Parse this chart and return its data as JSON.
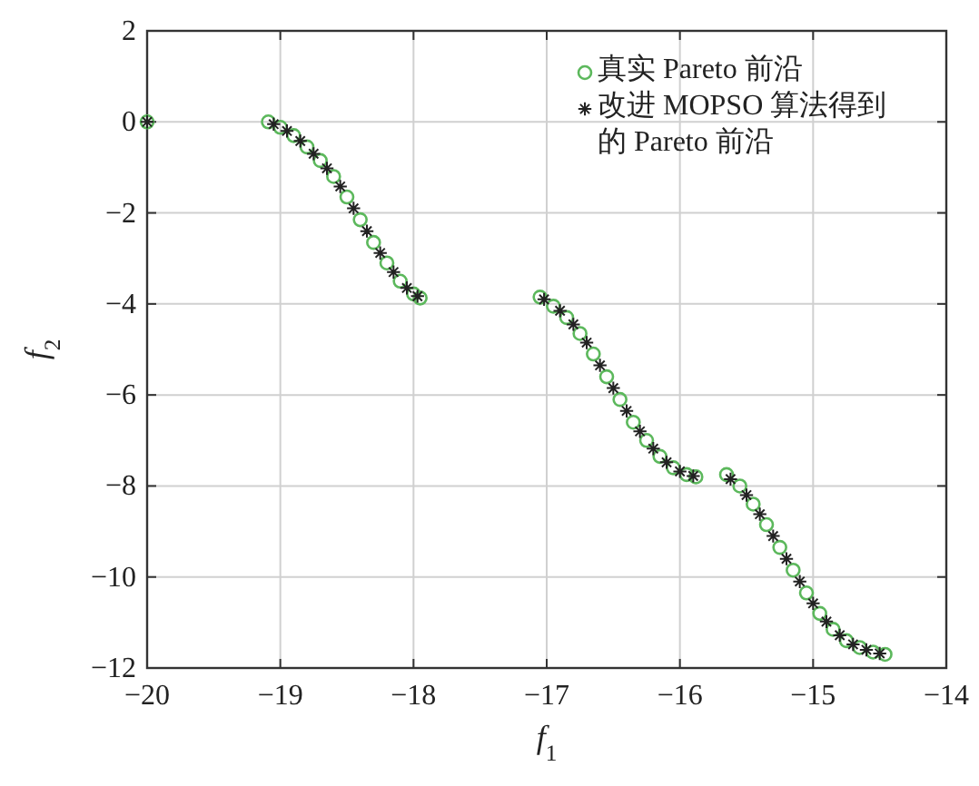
{
  "chart_data": {
    "type": "scatter",
    "xlabel": "f$_{1}$",
    "ylabel": "f$_{2}$",
    "xlim": [
      -20,
      -14
    ],
    "ylim": [
      -12,
      2
    ],
    "xticks": [
      {
        "value": -20,
        "label": "−20"
      },
      {
        "value": -19,
        "label": "−19"
      },
      {
        "value": -18,
        "label": "−18"
      },
      {
        "value": -17,
        "label": "−17"
      },
      {
        "value": -16,
        "label": "−16"
      },
      {
        "value": -15,
        "label": "−15"
      },
      {
        "value": -14,
        "label": "−14"
      }
    ],
    "yticks": [
      {
        "value": -12,
        "label": "−12"
      },
      {
        "value": -10,
        "label": "−10"
      },
      {
        "value": -8,
        "label": "−8"
      },
      {
        "value": -6,
        "label": "−6"
      },
      {
        "value": -4,
        "label": "−4"
      },
      {
        "value": -2,
        "label": "−2"
      },
      {
        "value": 0,
        "label": "0"
      },
      {
        "value": 2,
        "label": "2"
      }
    ],
    "grid": true,
    "legend": "top right",
    "series": [
      {
        "name": "真实 Pareto 前沿",
        "color": "#5cb85c",
        "marker": "circle",
        "x": [
          -20,
          -19.09,
          -19.0,
          -18.9,
          -18.8,
          -18.7,
          -18.6,
          -18.5,
          -18.4,
          -18.3,
          -18.2,
          -18.1,
          -18.0,
          -17.95,
          -17.05,
          -16.95,
          -16.85,
          -16.75,
          -16.65,
          -16.55,
          -16.45,
          -16.35,
          -16.25,
          -16.15,
          -16.05,
          -15.95,
          -15.88,
          -15.65,
          -15.55,
          -15.45,
          -15.35,
          -15.25,
          -15.15,
          -15.05,
          -14.95,
          -14.85,
          -14.75,
          -14.65,
          -14.55,
          -14.46
        ],
        "values": [
          0,
          0,
          -0.12,
          -0.3,
          -0.55,
          -0.85,
          -1.2,
          -1.65,
          -2.15,
          -2.65,
          -3.1,
          -3.5,
          -3.78,
          -3.87,
          -3.85,
          -4.05,
          -4.3,
          -4.65,
          -5.1,
          -5.6,
          -6.1,
          -6.6,
          -7.0,
          -7.35,
          -7.6,
          -7.75,
          -7.8,
          -7.75,
          -8.0,
          -8.4,
          -8.85,
          -9.35,
          -9.85,
          -10.35,
          -10.8,
          -11.15,
          -11.4,
          -11.55,
          -11.65,
          -11.7
        ]
      },
      {
        "name": "改进 MOPSO 算法得到的 Pareto 前沿",
        "color": "#222222",
        "marker": "cross",
        "x": [
          -20,
          -19.05,
          -18.95,
          -18.85,
          -18.75,
          -18.65,
          -18.55,
          -18.45,
          -18.35,
          -18.25,
          -18.15,
          -18.05,
          -17.97,
          -17.02,
          -16.9,
          -16.8,
          -16.7,
          -16.6,
          -16.5,
          -16.4,
          -16.3,
          -16.2,
          -16.1,
          -16.0,
          -15.9,
          -15.62,
          -15.5,
          -15.4,
          -15.3,
          -15.2,
          -15.1,
          -15.0,
          -14.9,
          -14.8,
          -14.7,
          -14.6,
          -14.5
        ],
        "values": [
          0,
          -0.05,
          -0.2,
          -0.42,
          -0.7,
          -1.02,
          -1.42,
          -1.9,
          -2.4,
          -2.88,
          -3.3,
          -3.65,
          -3.83,
          -3.9,
          -4.15,
          -4.45,
          -4.85,
          -5.35,
          -5.85,
          -6.35,
          -6.8,
          -7.18,
          -7.48,
          -7.68,
          -7.78,
          -7.85,
          -8.2,
          -8.62,
          -9.1,
          -9.6,
          -10.1,
          -10.58,
          -10.98,
          -11.28,
          -11.48,
          -11.6,
          -11.68
        ]
      }
    ]
  }
}
